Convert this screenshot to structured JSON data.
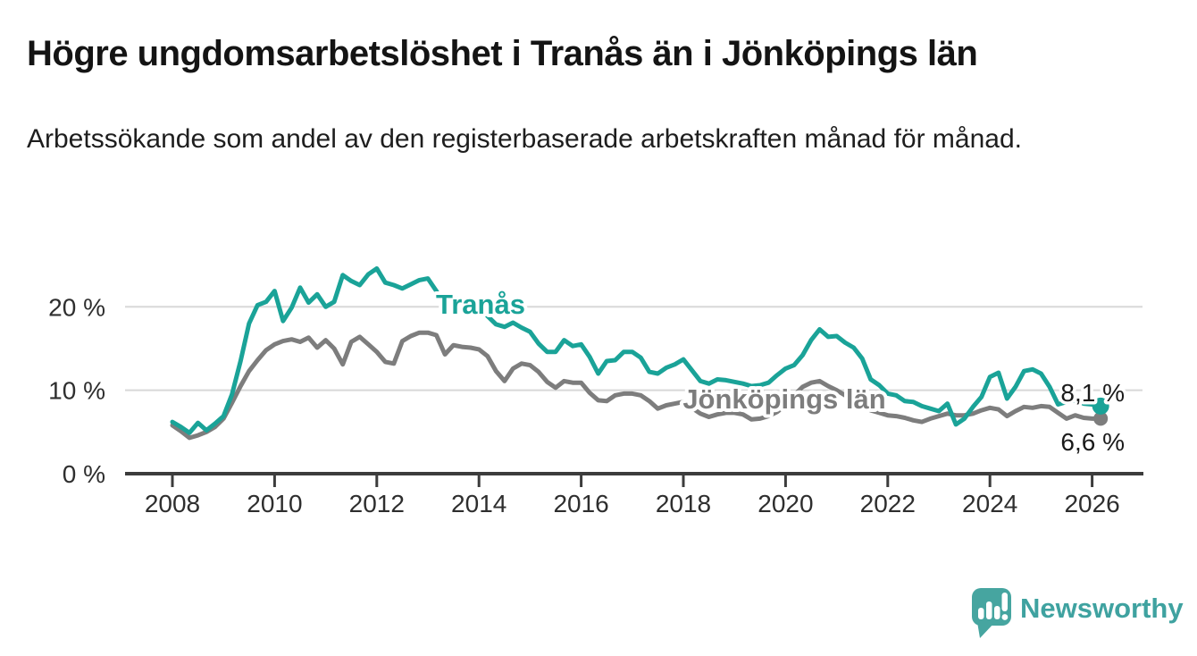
{
  "header": {
    "title": "Högre ungdomsarbetslöshet i Tranås än i Jönköpings län",
    "subtitle": "Arbetssökande som andel av den registerbaserade arbetskraften månad för månad."
  },
  "chart_data": {
    "type": "line",
    "title": "Högre ungdomsarbetslöshet i Tranås än i Jönköpings län",
    "xlabel": "",
    "ylabel": "Arbetssökande som andel av den registerbaserade arbetskraften",
    "grid": "horizontal",
    "legend_position": "inline-labels",
    "xlim": [
      2007.8,
      2027.0
    ],
    "ylim": [
      0,
      26
    ],
    "x_start": 2008,
    "x_step_years": 0.16667,
    "x_axis": {
      "ticks": [
        2008,
        2010,
        2012,
        2014,
        2016,
        2018,
        2020,
        2022,
        2024,
        2026
      ]
    },
    "y_axis": {
      "ticks": [
        {
          "value": 0,
          "label": "0 %"
        },
        {
          "value": 10,
          "label": "10 %"
        },
        {
          "value": 20,
          "label": "20 %"
        }
      ]
    },
    "series": [
      {
        "name": "Jönköpings län",
        "color": "#7D7D7D",
        "end_label": "6,6 %",
        "end_value": 6.6,
        "values": [
          5.8,
          5.1,
          4.3,
          4.6,
          5.0,
          5.6,
          6.6,
          8.5,
          10.5,
          12.3,
          13.6,
          14.8,
          15.5,
          15.9,
          16.1,
          15.8,
          16.3,
          15.1,
          16.0,
          15.0,
          13.1,
          15.8,
          16.4,
          15.5,
          14.6,
          13.4,
          13.2,
          15.9,
          16.5,
          16.9,
          16.9,
          16.6,
          14.3,
          15.4,
          15.2,
          15.1,
          14.9,
          14.1,
          12.3,
          11.1,
          12.6,
          13.2,
          13.0,
          12.2,
          11.0,
          10.3,
          11.1,
          10.9,
          10.9,
          9.7,
          8.8,
          8.7,
          9.4,
          9.6,
          9.6,
          9.4,
          8.7,
          7.8,
          8.2,
          8.4,
          8.6,
          7.9,
          7.2,
          6.8,
          7.1,
          7.3,
          7.3,
          7.1,
          6.5,
          6.6,
          6.9,
          7.4,
          8.2,
          9.4,
          10.4,
          10.9,
          11.1,
          10.5,
          10.0,
          9.4,
          8.8,
          8.2,
          7.6,
          7.3,
          7.0,
          6.9,
          6.7,
          6.4,
          6.2,
          6.6,
          6.9,
          7.2,
          7.0,
          7.0,
          7.2,
          7.6,
          7.9,
          7.7,
          6.9,
          7.5,
          8.0,
          7.9,
          8.1,
          8.0,
          7.3,
          6.6,
          7.0,
          6.7,
          6.6,
          6.6
        ]
      },
      {
        "name": "Tranås",
        "color": "#1AA398",
        "end_label": "8,1 %",
        "end_value": 8.1,
        "values": [
          6.2,
          5.6,
          4.9,
          6.1,
          5.2,
          6.0,
          6.9,
          9.5,
          13.5,
          18.0,
          20.2,
          20.6,
          21.9,
          18.3,
          19.9,
          22.3,
          20.5,
          21.5,
          20.0,
          20.6,
          23.8,
          23.1,
          22.6,
          23.9,
          24.6,
          22.9,
          22.6,
          22.2,
          22.7,
          23.2,
          23.4,
          21.9,
          20.0,
          21.1,
          20.9,
          21.0,
          20.2,
          18.9,
          17.9,
          17.6,
          18.1,
          17.5,
          17.0,
          15.6,
          14.6,
          14.6,
          16.0,
          15.3,
          15.5,
          14.0,
          12.0,
          13.5,
          13.6,
          14.6,
          14.6,
          13.9,
          12.2,
          12.0,
          12.7,
          13.1,
          13.7,
          12.4,
          11.1,
          10.8,
          11.3,
          11.2,
          11.0,
          10.8,
          10.5,
          10.6,
          10.9,
          11.8,
          12.6,
          13.0,
          14.2,
          16.0,
          17.3,
          16.4,
          16.5,
          15.7,
          15.1,
          13.8,
          11.3,
          10.6,
          9.6,
          9.4,
          8.7,
          8.6,
          8.1,
          7.8,
          7.5,
          8.4,
          5.9,
          6.6,
          8.0,
          9.2,
          11.6,
          12.1,
          9.0,
          10.4,
          12.3,
          12.5,
          12.0,
          10.4,
          8.3,
          8.6,
          8.8,
          8.4,
          8.3,
          8.1
        ]
      }
    ]
  },
  "footer": {
    "brand": "Newsworthy"
  },
  "colors": {
    "accent_teal": "#1AA398",
    "series_gray": "#7D7D7D",
    "grid": "#D8D8D8",
    "axis": "#3C3C3C",
    "text_dark": "#1A1A1A",
    "tick_text": "#2E2E2E",
    "logo_teal": "#46A5A0"
  }
}
